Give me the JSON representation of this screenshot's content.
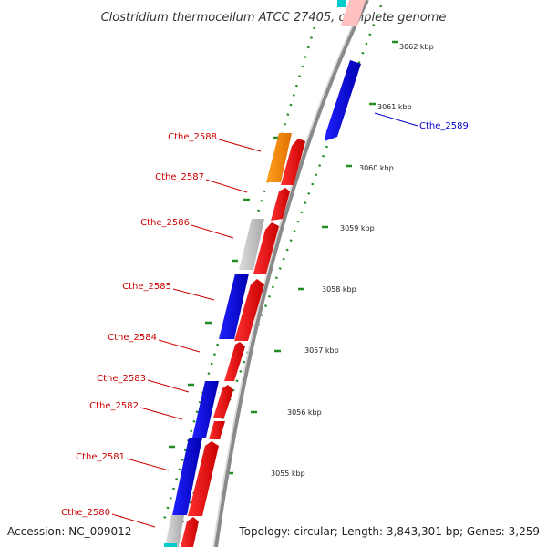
{
  "title": "Clostridium thermocellum ATCC 27405, complete genome",
  "footer": {
    "accession": "Accession: NC_009012",
    "topology": "Topology: circular; Length: 3,843,301 bp; Genes: 3,259"
  },
  "kbp_labels": [
    "3062 kbp",
    "3061 kbp",
    "3060 kbp",
    "3059 kbp",
    "3058 kbp",
    "3057 kbp",
    "3056 kbp",
    "3055 kbp"
  ],
  "gene_labels": [
    {
      "name": "Cthe_2589",
      "color": "#0000cc"
    },
    {
      "name": "Cthe_2588",
      "color": "#cc0000"
    },
    {
      "name": "Cthe_2587",
      "color": "#cc0000"
    },
    {
      "name": "Cthe_2586",
      "color": "#cc0000"
    },
    {
      "name": "Cthe_2585",
      "color": "#cc0000"
    },
    {
      "name": "Cthe_2584",
      "color": "#cc0000"
    },
    {
      "name": "Cthe_2583",
      "color": "#cc0000"
    },
    {
      "name": "Cthe_2582",
      "color": "#cc0000"
    },
    {
      "name": "Cthe_2581",
      "color": "#cc0000"
    },
    {
      "name": "Cthe_2580",
      "color": "#cc0000"
    }
  ],
  "colors": {
    "cog_red": "#ff0000",
    "cog_blue": "#0000ee",
    "cog_orange": "#ff8c00",
    "cog_gray": "#bbbbbb",
    "backbone": "#888888",
    "tick_green": "#228b22"
  }
}
